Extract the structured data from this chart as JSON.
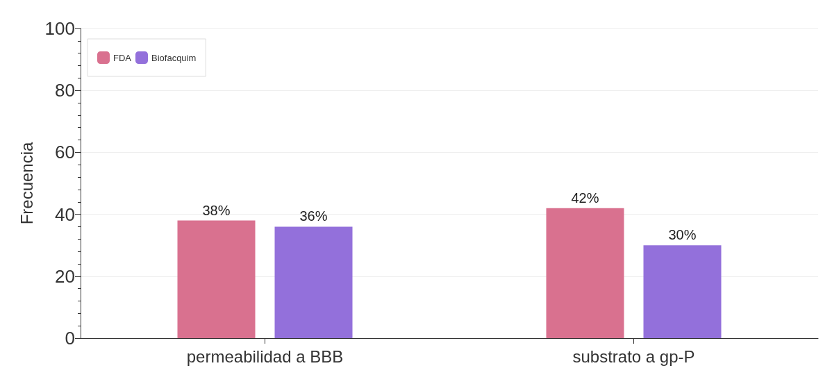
{
  "chart_data": {
    "type": "bar",
    "ylabel": "Frecuencia",
    "categories": [
      "permeabilidad a BBB",
      "substrato a gp-P"
    ],
    "series": [
      {
        "name": "FDA",
        "color": "#d9718f",
        "values": [
          38,
          42
        ],
        "value_labels": [
          "38%",
          "42%"
        ]
      },
      {
        "name": "Biofacquim",
        "color": "#9370db",
        "values": [
          36,
          30
        ],
        "value_labels": [
          "36%",
          "30%"
        ]
      }
    ],
    "ylim": [
      0,
      100
    ],
    "yticks": [
      0,
      20,
      40,
      60,
      80,
      100
    ],
    "grid": "y",
    "legend": "top left"
  }
}
